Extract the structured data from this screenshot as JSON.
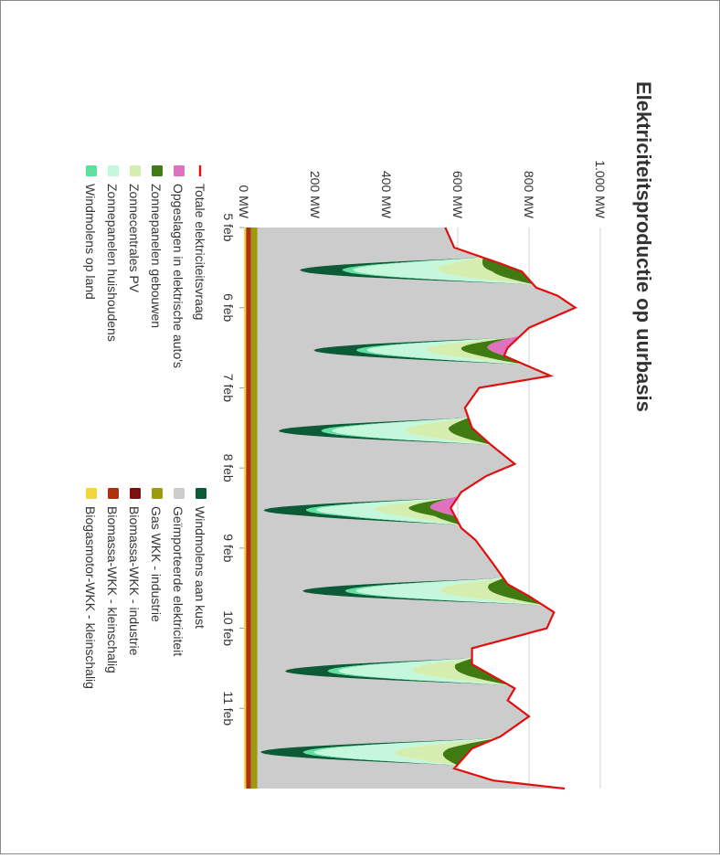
{
  "chart_data": {
    "type": "area",
    "title": "Elektriciteitsproductie op uurbasis",
    "y_ticks": [
      "0 MW",
      "200 MW",
      "400 MW",
      "600 MW",
      "800 MW",
      "1.000 MW"
    ],
    "ylim": [
      0,
      1000
    ],
    "x_ticks": [
      "5 feb",
      "6 feb",
      "7 feb",
      "8 feb",
      "9 feb",
      "10 feb",
      "11 feb"
    ],
    "x_range_days": [
      5,
      12
    ],
    "grid": true,
    "legend_placement": "bottom",
    "demand_line": {
      "name": "Totale elektriciteitsvraag",
      "color": "#e01010",
      "points": [
        [
          5,
          565
        ],
        [
          5.25,
          590
        ],
        [
          5.45,
          720
        ],
        [
          5.55,
          780
        ],
        [
          5.75,
          820
        ],
        [
          5.85,
          880
        ],
        [
          6.0,
          930
        ],
        [
          6.25,
          800
        ],
        [
          6.5,
          740
        ],
        [
          6.6,
          730
        ],
        [
          6.85,
          860
        ],
        [
          7.0,
          660
        ],
        [
          7.25,
          620
        ],
        [
          7.5,
          640
        ],
        [
          7.7,
          690
        ],
        [
          7.95,
          760
        ],
        [
          8.1,
          680
        ],
        [
          8.3,
          610
        ],
        [
          8.5,
          580
        ],
        [
          8.75,
          610
        ],
        [
          8.9,
          650
        ],
        [
          9.2,
          700
        ],
        [
          9.45,
          740
        ],
        [
          9.6,
          800
        ],
        [
          9.8,
          870
        ],
        [
          10.0,
          850
        ],
        [
          10.25,
          640
        ],
        [
          10.45,
          640
        ],
        [
          10.75,
          760
        ],
        [
          10.9,
          740
        ],
        [
          11.1,
          800
        ],
        [
          11.35,
          720
        ],
        [
          11.5,
          640
        ],
        [
          11.75,
          590
        ],
        [
          11.9,
          700
        ],
        [
          12.0,
          900
        ]
      ]
    },
    "stacked_series": [
      {
        "name": "Biogasmotor-WKK - kleinschalig",
        "color": "#f5d63a",
        "values_mw": 6
      },
      {
        "name": "Biomassa-WKK - kleinschalig",
        "color": "#b03010",
        "values_mw": 14
      },
      {
        "name": "Biomassa-WKK - industrie",
        "color": "#7a1010",
        "values_mw": 0
      },
      {
        "name": "Gas WKK - industrie",
        "color": "#9e9a10",
        "values_mw": 18
      },
      {
        "name": "Geïmporteerde elektriciteit",
        "color": "#cccccc",
        "values_mw": "remainder"
      },
      {
        "name": "Windmolens aan kust",
        "color": "#0d5a37"
      },
      {
        "name": "Windmolens op land",
        "color": "#5ee0a0"
      },
      {
        "name": "Zonnepanelen huishoudens",
        "color": "#c4f7dc"
      },
      {
        "name": "Zonnecentrales PV",
        "color": "#d5eeb0"
      },
      {
        "name": "Zonnepanelen gebouwen",
        "color": "#3f7a12"
      },
      {
        "name": "Opgeslagen in elektrische auto's",
        "color": "#e070c0"
      }
    ],
    "solar_days": [
      {
        "day": 5,
        "peak_mw": 800
      },
      {
        "day": 6,
        "peak_mw": 560
      },
      {
        "day": 7,
        "peak_mw": 690
      },
      {
        "day": 8,
        "peak_mw": 560
      },
      {
        "day": 9,
        "peak_mw": 790
      },
      {
        "day": 10,
        "peak_mw": 700
      },
      {
        "day": 11,
        "peak_mw": 760
      }
    ]
  },
  "legend": {
    "left": [
      {
        "label": "Totale elektriciteitsvraag",
        "color": "#e01010",
        "kind": "line"
      },
      {
        "label": "Opgeslagen in elektrische auto's",
        "color": "#e070c0",
        "kind": "box"
      },
      {
        "label": "Zonnepanelen gebouwen",
        "color": "#3f7a12",
        "kind": "box"
      },
      {
        "label": "Zonnecentrales PV",
        "color": "#d5eeb0",
        "kind": "box"
      },
      {
        "label": "Zonnepanelen huishoudens",
        "color": "#c4f7dc",
        "kind": "box"
      },
      {
        "label": "Windmolens op land",
        "color": "#5ee0a0",
        "kind": "box"
      }
    ],
    "right": [
      {
        "label": "Windmolens aan kust",
        "color": "#0d5a37",
        "kind": "box"
      },
      {
        "label": "Geïmporteerde elektriciteit",
        "color": "#cccccc",
        "kind": "box"
      },
      {
        "label": "Gas WKK - industrie",
        "color": "#9e9a10",
        "kind": "box"
      },
      {
        "label": "Biomassa-WKK - industrie",
        "color": "#7a1010",
        "kind": "box"
      },
      {
        "label": "Biomassa-WKK - kleinschalig",
        "color": "#b03010",
        "kind": "box"
      },
      {
        "label": "Biogasmotor-WKK - kleinschalig",
        "color": "#f5d63a",
        "kind": "box"
      }
    ]
  }
}
